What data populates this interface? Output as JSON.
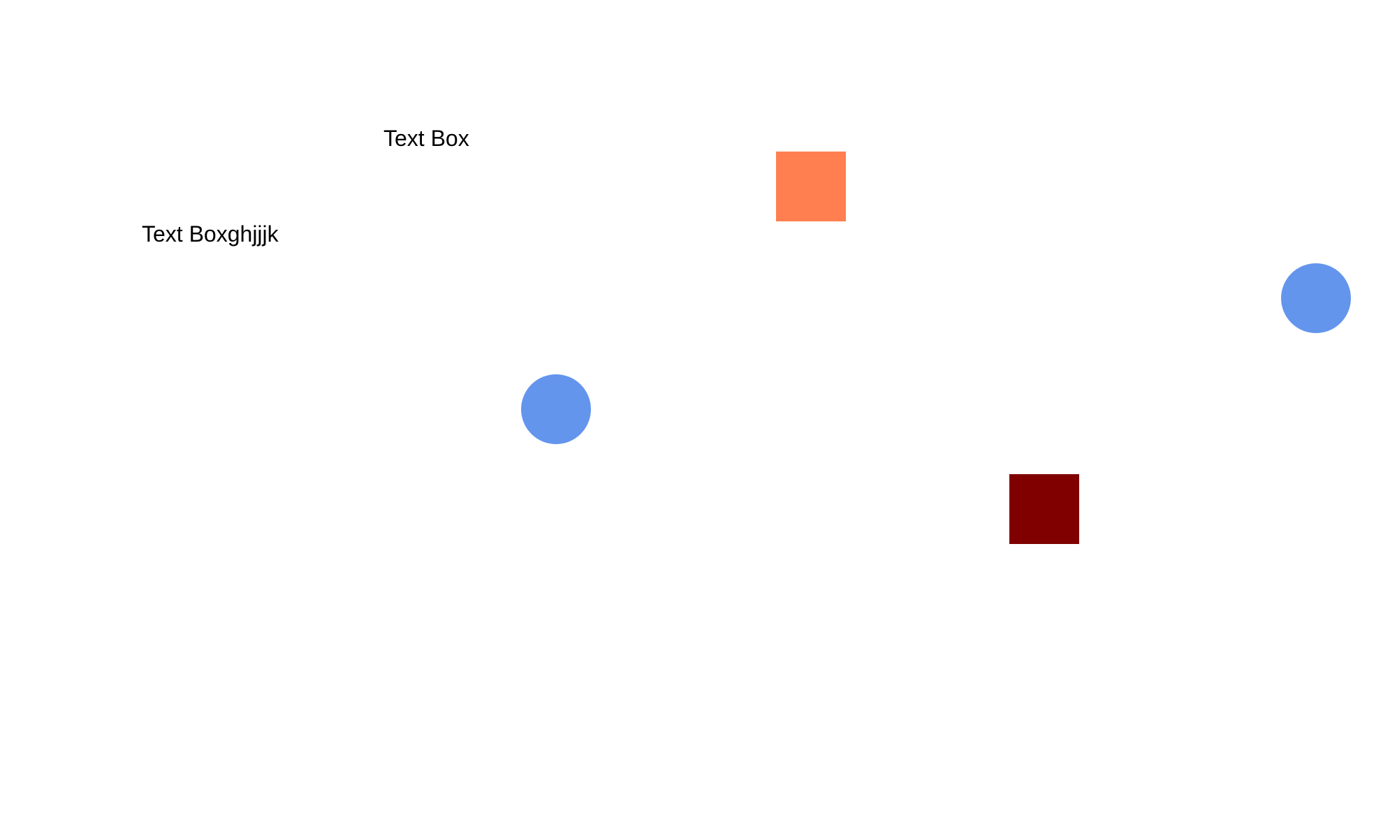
{
  "canvas": {
    "background": "#ffffff",
    "text_boxes": [
      {
        "text": "Text Box"
      },
      {
        "text": "Text Boxghjjjk"
      }
    ],
    "shapes": [
      {
        "kind": "square",
        "color": "#ff7f50"
      },
      {
        "kind": "circle",
        "color": "#6495ed"
      },
      {
        "kind": "circle",
        "color": "#6495ed"
      },
      {
        "kind": "square",
        "color": "#800000"
      }
    ]
  }
}
